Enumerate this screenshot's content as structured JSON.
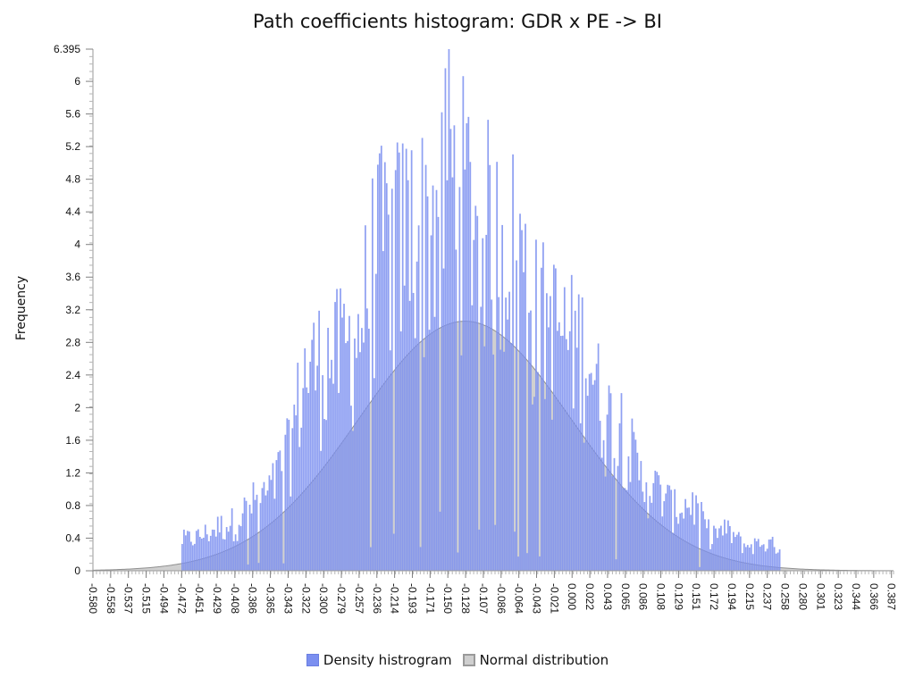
{
  "chart_data": {
    "type": "bar",
    "title": "Path coefficients histogram: GDR x PE -> BI",
    "ylabel": "Frequency",
    "xlabel": "",
    "ylim": [
      0,
      6.395
    ],
    "xlim": [
      -0.58,
      0.397
    ],
    "y_ticks": [
      "0",
      "0.4",
      "0.8",
      "1.2",
      "1.6",
      "2",
      "2.4",
      "2.8",
      "3.2",
      "3.6",
      "4",
      "4.4",
      "4.8",
      "5.2",
      "5.6",
      "6",
      "6.395"
    ],
    "x_ticks": [
      "-0.580",
      "-0.558",
      "-0.537",
      "-0.515",
      "-0.494",
      "-0.472",
      "-0.451",
      "-0.429",
      "-0.408",
      "-0.386",
      "-0.365",
      "-0.343",
      "-0.322",
      "-0.300",
      "-0.279",
      "-0.257",
      "-0.236",
      "-0.214",
      "-0.193",
      "-0.171",
      "-0.150",
      "-0.128",
      "-0.107",
      "-0.086",
      "-0.064",
      "-0.043",
      "-0.021",
      "0.000",
      "0.022",
      "0.043",
      "0.065",
      "0.086",
      "0.108",
      "0.129",
      "0.151",
      "0.172",
      "0.194",
      "0.215",
      "0.237",
      "0.258",
      "0.280",
      "0.301",
      "0.323",
      "0.344",
      "0.366",
      "0.387"
    ],
    "histogram": {
      "name": "Density histrogram",
      "color": "#7b8ff0",
      "bin_width": 0.00217,
      "envelope": {
        "x": [
          -0.472,
          -0.451,
          -0.429,
          -0.408,
          -0.386,
          -0.365,
          -0.343,
          -0.322,
          -0.3,
          -0.279,
          -0.257,
          -0.236,
          -0.214,
          -0.193,
          -0.171,
          -0.15,
          -0.128,
          -0.107,
          -0.086,
          -0.064,
          -0.043,
          -0.021,
          0.0,
          0.022,
          0.043,
          0.065,
          0.086,
          0.108,
          0.129,
          0.151,
          0.172,
          0.194,
          0.215,
          0.237,
          0.258
        ],
        "peak": [
          0.5,
          0.55,
          0.7,
          0.8,
          1.1,
          1.25,
          1.9,
          3.2,
          3.4,
          3.5,
          3.8,
          5.2,
          5.3,
          5.6,
          5.5,
          6.395,
          6.1,
          5.75,
          5.3,
          5.3,
          4.2,
          4.0,
          3.7,
          3.6,
          2.5,
          2.4,
          1.5,
          1.3,
          1.0,
          1.1,
          0.6,
          0.65,
          0.4,
          0.45,
          0.4
        ]
      },
      "peak_bin": {
        "x": -0.147,
        "y": 6.395
      }
    },
    "normal_distribution": {
      "name": "Normal distribution",
      "color": "#b3b3b3",
      "mean": -0.126,
      "peak_density": 3.06,
      "std": 0.13
    }
  },
  "legend": {
    "histogram_label": "Density histrogram",
    "normal_label": "Normal distribution"
  }
}
